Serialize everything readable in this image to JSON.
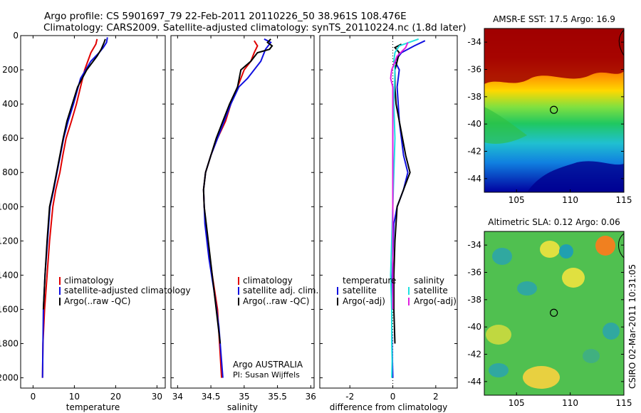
{
  "header": {
    "line1": "Argo profile: CS 5901697_79 22-Feb-2011 20110226_50 38.961S 108.476E",
    "line2": "Climatology: CARS2009. Satellite-adjusted climatology: synTS_20110224.nc (1.8d later)"
  },
  "side_text": "CSIRO 02-Mar-2011 10:31:05",
  "colors": {
    "red": "#e00000",
    "blue": "#1010e0",
    "black": "#000000",
    "cyan": "#20e0e0",
    "magenta": "#e020e0"
  },
  "chart_data": [
    {
      "type": "line",
      "xlabel": "temperature",
      "xlim": [
        -3,
        32
      ],
      "ylim": [
        2060,
        0
      ],
      "xticks": [
        0,
        10,
        20,
        30
      ],
      "yticks": [
        0,
        200,
        400,
        600,
        800,
        1000,
        1200,
        1400,
        1600,
        1800,
        2000
      ],
      "legend": {
        "position": "lower-right",
        "entries": [
          {
            "label": "climatology",
            "color": "red"
          },
          {
            "label": "satellite-adjusted climatology",
            "color": "blue"
          },
          {
            "label": "Argo(..raw -QC)",
            "color": "black"
          }
        ]
      },
      "series": [
        {
          "color": "red",
          "x": [
            15.5,
            15.2,
            14.0,
            12.5,
            10.5,
            9.3,
            8.0,
            7.2,
            6.5,
            5.5,
            4.8,
            4.0,
            3.4,
            2.8,
            2.4,
            2.3
          ],
          "y": [
            20,
            50,
            100,
            200,
            400,
            500,
            600,
            700,
            800,
            900,
            1000,
            1200,
            1400,
            1600,
            1800,
            2000
          ]
        },
        {
          "color": "blue",
          "x": [
            18.0,
            17.8,
            17.0,
            16.0,
            14.0,
            11.5,
            9.8,
            8.5,
            7.4,
            6.6,
            5.8,
            5.0,
            4.1,
            3.5,
            2.9,
            2.5,
            2.3
          ],
          "y": [
            10,
            40,
            70,
            100,
            150,
            250,
            400,
            500,
            600,
            700,
            800,
            900,
            1000,
            1200,
            1400,
            1600,
            2000
          ]
        },
        {
          "color": "black",
          "x": [
            17.5,
            17.2,
            16.5,
            15.5,
            13.0,
            10.8,
            9.5,
            8.2,
            7.3,
            6.5,
            5.7,
            4.9,
            4.0,
            3.4,
            2.9,
            2.5
          ],
          "y": [
            20,
            40,
            80,
            120,
            200,
            300,
            400,
            500,
            600,
            700,
            800,
            900,
            1000,
            1200,
            1400,
            1600
          ]
        }
      ]
    },
    {
      "type": "line",
      "xlabel": "salinity",
      "xlim": [
        33.9,
        36.05
      ],
      "ylim": [
        2060,
        0
      ],
      "xticks": [
        34,
        34.5,
        35,
        35.5,
        36
      ],
      "yticks": [
        0,
        200,
        400,
        600,
        800,
        1000,
        1200,
        1400,
        1600,
        1800,
        2000
      ],
      "legend": {
        "position": "lower-right",
        "entries": [
          {
            "label": "climatology",
            "color": "red"
          },
          {
            "label": "satellite adj. clim.",
            "color": "blue"
          },
          {
            "label": "Argo(..raw -QC)",
            "color": "black"
          }
        ]
      },
      "annotation": [
        "Argo AUSTRALIA",
        "PI: Susan Wijffels"
      ],
      "series": [
        {
          "color": "red",
          "x": [
            35.15,
            35.2,
            35.15,
            35.1,
            35.0,
            34.9,
            34.8,
            34.72,
            34.6,
            34.5,
            34.42,
            34.39,
            34.4,
            34.45,
            34.52,
            34.6,
            34.66
          ],
          "y": [
            30,
            60,
            100,
            150,
            200,
            300,
            400,
            500,
            600,
            700,
            800,
            900,
            1000,
            1200,
            1400,
            1600,
            2000
          ]
        },
        {
          "color": "blue",
          "x": [
            35.3,
            35.4,
            35.32,
            35.25,
            35.05,
            34.92,
            34.8,
            34.7,
            34.6,
            34.5,
            34.42,
            34.39,
            34.41,
            34.47,
            34.55,
            34.62,
            34.68
          ],
          "y": [
            20,
            40,
            80,
            150,
            250,
            300,
            400,
            500,
            600,
            700,
            800,
            900,
            1100,
            1300,
            1500,
            1700,
            2000
          ]
        },
        {
          "color": "black",
          "x": [
            35.4,
            35.35,
            35.42,
            35.38,
            35.2,
            35.1,
            34.95,
            34.9,
            34.78,
            34.68,
            34.58,
            34.5,
            34.42,
            34.39,
            34.4,
            34.46,
            34.52,
            34.58,
            34.64
          ],
          "y": [
            20,
            40,
            60,
            80,
            100,
            150,
            200,
            300,
            400,
            500,
            600,
            700,
            800,
            900,
            1000,
            1200,
            1400,
            1600,
            1800
          ]
        }
      ]
    },
    {
      "type": "line",
      "xlabel": "difference from climatology",
      "xlim": [
        -3.4,
        3.0
      ],
      "ylim": [
        2060,
        0
      ],
      "xticks": [
        -2,
        0,
        2
      ],
      "yticks": [
        0,
        200,
        400,
        600,
        800,
        1000,
        1200,
        1400,
        1600,
        1800,
        2000
      ],
      "legend": {
        "position": "lower-center",
        "headers": [
          "temperature",
          "salinity"
        ],
        "entries": [
          {
            "label": "satellite",
            "color": "blue"
          },
          {
            "label": "Argo(-adj)",
            "color": "black"
          },
          {
            "label": "satellite",
            "color": "cyan"
          },
          {
            "label": "Argo(-adj)",
            "color": "magenta"
          }
        ]
      },
      "series": [
        {
          "color": "blue",
          "x": [
            1.5,
            1.0,
            0.4,
            0.1,
            0.3,
            0.2,
            0.25,
            0.3,
            0.5,
            0.7,
            0.5,
            0.2,
            0.05,
            0.0,
            -0.05,
            -0.05,
            0.0
          ],
          "y": [
            30,
            60,
            100,
            150,
            200,
            300,
            400,
            500,
            700,
            800,
            900,
            1000,
            1100,
            1300,
            1500,
            1700,
            2000
          ]
        },
        {
          "color": "black",
          "x": [
            0.4,
            0.1,
            0.3,
            0.2,
            0.1,
            0.1,
            0.15,
            0.3,
            0.6,
            0.8,
            0.5,
            0.2,
            0.1,
            0.05,
            0.05,
            0.1
          ],
          "y": [
            50,
            70,
            100,
            150,
            200,
            300,
            400,
            500,
            700,
            800,
            900,
            1000,
            1200,
            1400,
            1600,
            1800
          ]
        },
        {
          "color": "cyan",
          "x": [
            1.2,
            0.3,
            0.1,
            0.05,
            0.1,
            0.05,
            0.1,
            0.05,
            0.0,
            -0.05,
            -0.1,
            -0.05,
            -0.05,
            -0.03,
            -0.05
          ],
          "y": [
            20,
            60,
            100,
            150,
            200,
            400,
            600,
            800,
            1000,
            1200,
            1400,
            1600,
            1800,
            1900,
            2000
          ]
        },
        {
          "color": "magenta",
          "x": [
            0.7,
            0.6,
            0.2,
            -0.05,
            -0.1,
            0.0,
            0.0,
            0.0,
            0.0,
            0.0,
            0.0
          ],
          "y": [
            40,
            70,
            120,
            200,
            250,
            300,
            400,
            600,
            800,
            1200,
            1600
          ]
        }
      ]
    },
    {
      "type": "heatmap",
      "title": "AMSR-E SST: 17.5 Argo: 16.9",
      "xlim": [
        102,
        115
      ],
      "ylim": [
        -45,
        -33
      ],
      "xticks": [
        105,
        110,
        115
      ],
      "yticks": [
        -34,
        -36,
        -38,
        -40,
        -42,
        -44
      ],
      "marker": {
        "lon": 108.476,
        "lat": -38.961
      }
    },
    {
      "type": "heatmap",
      "title": "Altimetric SLA: 0.12 Argo: 0.06",
      "xlim": [
        102,
        115
      ],
      "ylim": [
        -45,
        -33
      ],
      "xticks": [
        105,
        110,
        115
      ],
      "yticks": [
        -34,
        -36,
        -38,
        -40,
        -42,
        -44
      ],
      "marker": {
        "lon": 108.476,
        "lat": -38.961
      }
    }
  ]
}
